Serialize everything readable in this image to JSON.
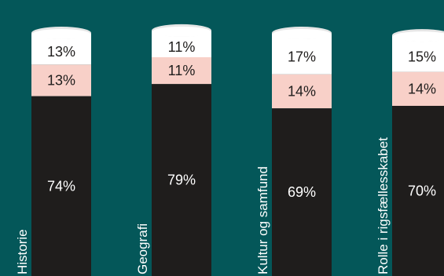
{
  "colors": {
    "background": "#045759",
    "bottom_segment": "#1f1d1c",
    "middle_segment": "#f8d0c8",
    "top_segment": "#ffffff",
    "cap_rim": "#e6e6e6",
    "label_dark_on_light": "#1f1d1c",
    "label_light_on_dark": "#ffffff"
  },
  "chart_data": {
    "type": "bar",
    "stacked": true,
    "bar_shape": "cylinder",
    "categories": [
      "Historie",
      "Geografi",
      "Kultur og samfund",
      "Rolle i rigsfællesskabet"
    ],
    "category_labels_visible": [
      "Historie",
      "Geografi",
      "Kultur og samfund",
      "Rolle i rigsfællesskabet"
    ],
    "series": [
      {
        "values": [
          74,
          79,
          69,
          70
        ],
        "labels": [
          "74%",
          "79%",
          "69%",
          "70%"
        ]
      },
      {
        "values": [
          13,
          11,
          14,
          14
        ],
        "labels": [
          "13%",
          "11%",
          "14%",
          "14%"
        ]
      },
      {
        "values": [
          13,
          11,
          17,
          15
        ],
        "labels": [
          "13%",
          "11%",
          "17%",
          "15%"
        ]
      }
    ],
    "unit": "%",
    "ylim": [
      0,
      100
    ],
    "grid": false,
    "legend": "none"
  }
}
